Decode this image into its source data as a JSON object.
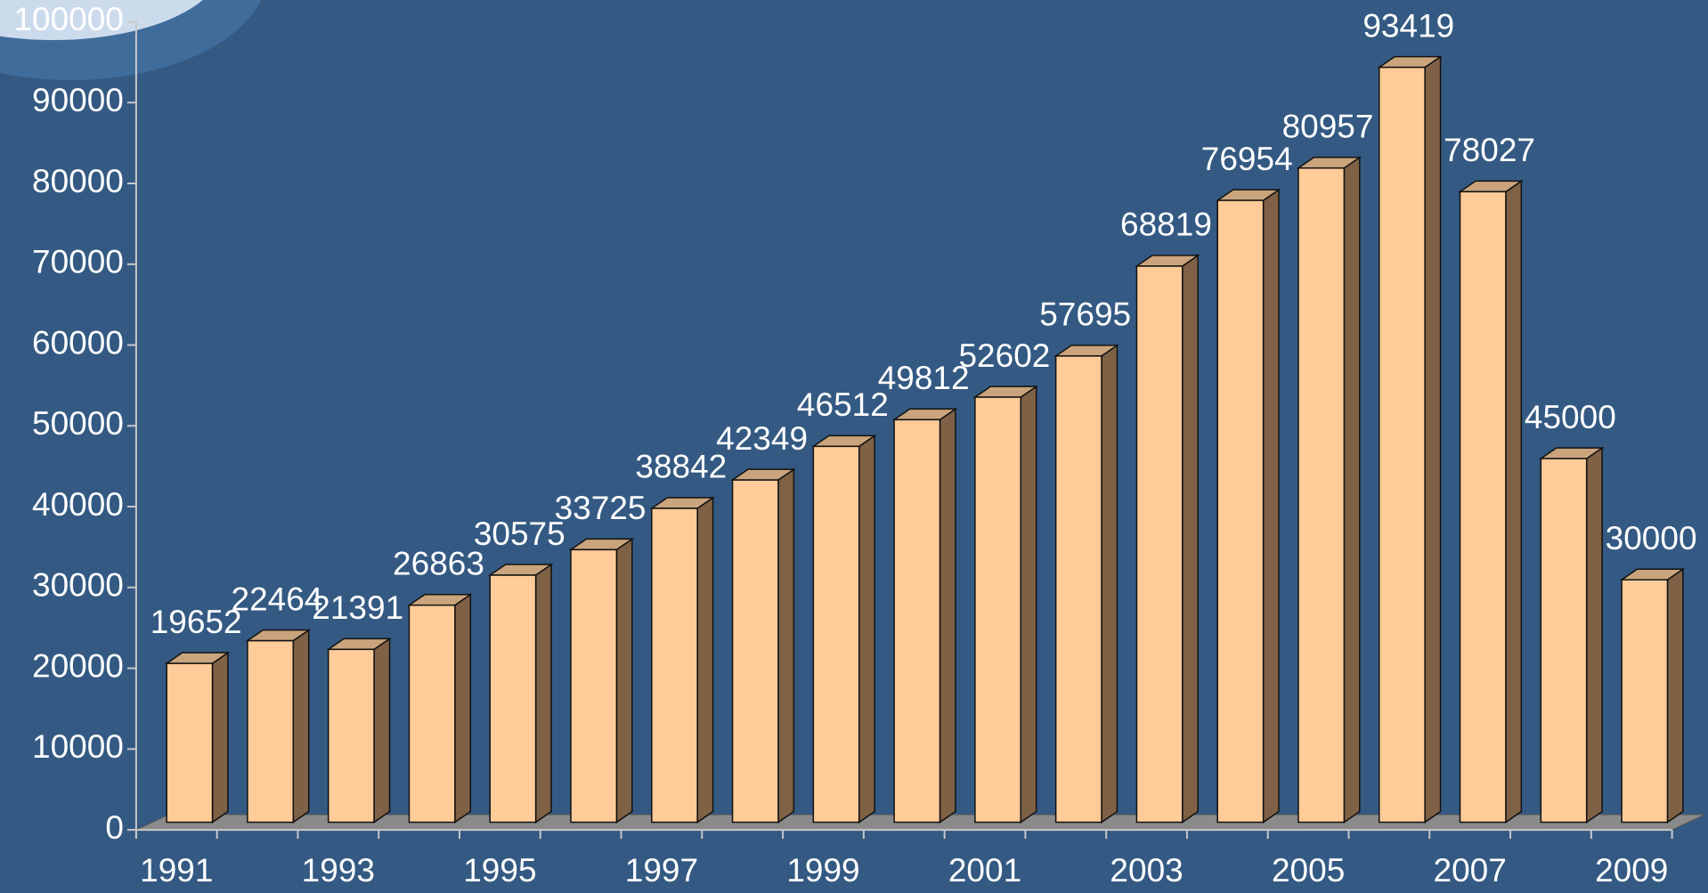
{
  "chart_data": {
    "type": "bar",
    "categories": [
      "1991",
      null,
      "1993",
      null,
      "1995",
      null,
      "1997",
      null,
      "1999",
      null,
      "2001",
      null,
      "2003",
      null,
      "2005",
      null,
      "2007",
      null,
      "2009"
    ],
    "values": [
      19652,
      22464,
      21391,
      26863,
      30575,
      33725,
      38842,
      42349,
      46512,
      49812,
      52602,
      57695,
      68819,
      76954,
      80957,
      93419,
      78027,
      45000,
      30000
    ],
    "color": "#ffcc99",
    "ylim": [
      0,
      100000
    ],
    "yticks": [
      0,
      10000,
      20000,
      30000,
      40000,
      50000,
      60000,
      70000,
      80000,
      90000,
      100000
    ]
  }
}
